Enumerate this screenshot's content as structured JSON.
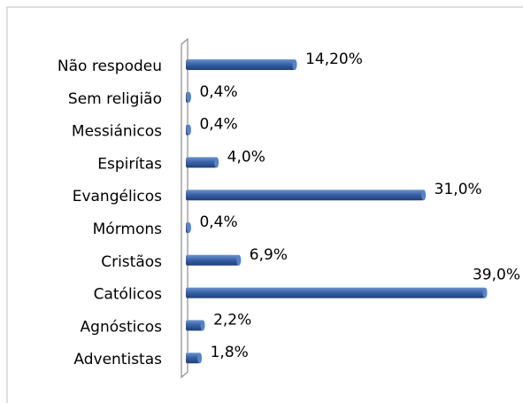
{
  "chart_data": {
    "type": "bar",
    "orientation": "horizontal",
    "categories": [
      "Não respodeu",
      "Sem religião",
      "Messiánicos",
      "Espirítas",
      "Evangélicos",
      "Mórmons",
      "Cristãos",
      "Católicos",
      "Agnósticos",
      "Adventistas"
    ],
    "values": [
      14.2,
      0.4,
      0.4,
      4.0,
      31.0,
      0.4,
      6.9,
      39.0,
      2.2,
      1.8
    ],
    "value_labels": [
      "14,20%",
      "0,4%",
      "0,4%",
      "4,0%",
      "31,0%",
      "0,4%",
      "6,9%",
      "39,0%",
      "2,2%",
      "1,8%"
    ],
    "color": "#3a64a8"
  }
}
